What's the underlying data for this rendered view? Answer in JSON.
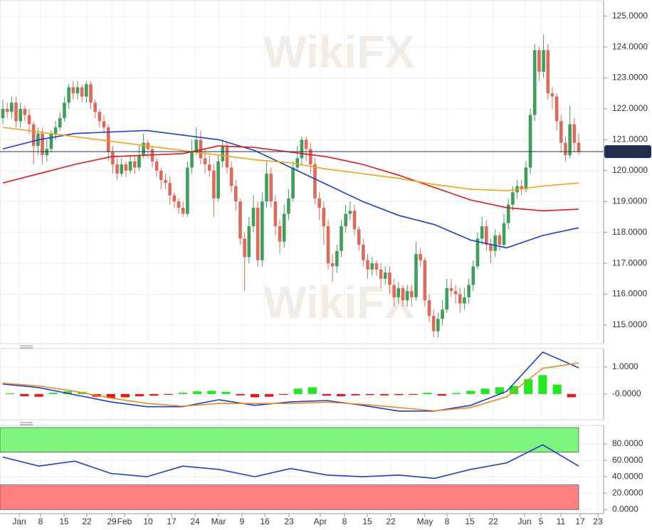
{
  "watermark": "WikiFX",
  "x_axis_labels": [
    "Jan",
    "8",
    "15",
    "22",
    "29",
    "Feb",
    "10",
    "17",
    "24",
    "Mar",
    "9",
    "16",
    "23",
    "Apr",
    "8",
    "15",
    "22",
    "May",
    "8",
    "15",
    "22",
    "Jun",
    "5",
    "11",
    "17",
    "23"
  ],
  "chart_data": [
    {
      "type": "candlestick",
      "ylim": [
        114.4,
        125.5
      ],
      "yticks": [
        {
          "value": 115,
          "label": "115.0000"
        },
        {
          "value": 116,
          "label": "116.0000"
        },
        {
          "value": 117,
          "label": "117.0000"
        },
        {
          "value": 118,
          "label": "118.0000"
        },
        {
          "value": 119,
          "label": "119.0000"
        },
        {
          "value": 120,
          "label": "120.0000"
        },
        {
          "value": 121,
          "label": "121.0000"
        },
        {
          "value": 122,
          "label": "122.0000"
        },
        {
          "value": 123,
          "label": "123.0000"
        },
        {
          "value": 124,
          "label": "124.0000"
        },
        {
          "value": 125,
          "label": "125.0000"
        }
      ],
      "grid": true,
      "up_color": "#3f9e5a",
      "down_color": "#dd6a5a",
      "open": [
        121.7,
        122.0,
        121.9,
        122.2,
        121.6,
        122.0,
        121.8,
        121.5,
        120.8,
        121.2,
        120.5,
        120.7,
        121.2,
        121.4,
        121.7,
        122.2,
        122.7,
        122.5,
        122.7,
        122.4,
        122.8,
        122.2,
        121.9,
        121.6,
        121.4,
        120.6,
        120.2,
        119.9,
        120.2,
        120.0,
        120.3,
        120.1,
        120.5,
        120.9,
        120.7,
        120.3,
        120.0,
        119.7,
        119.6,
        119.2,
        119.0,
        118.8,
        118.6,
        120.1,
        120.6,
        121.0,
        120.4,
        120.2,
        120.0,
        119.1,
        120.3,
        120.8,
        120.1,
        119.5,
        119.0,
        117.8,
        117.2,
        118.2,
        118.8,
        117.1,
        119.0,
        119.9,
        119.0,
        118.2,
        117.7,
        118.6,
        119.1,
        120.1,
        120.4,
        121.0,
        120.7,
        120.2,
        119.1,
        118.8,
        118.2,
        117.0,
        116.9,
        117.4,
        118.2,
        118.6,
        118.7,
        118.1,
        117.6,
        117.1,
        116.8,
        117.0,
        116.8,
        116.5,
        116.7,
        116.3,
        115.9,
        116.2,
        115.8,
        116.1,
        115.9,
        117.3,
        117.1,
        115.8,
        115.3,
        114.8,
        115.2,
        115.5,
        116.2,
        116.1,
        116.0,
        115.7,
        115.9,
        116.3,
        116.9,
        117.8,
        118.2,
        117.6,
        117.4,
        117.9,
        117.6,
        118.3,
        118.9,
        119.3,
        119.5,
        119.4,
        120.1,
        121.8,
        123.9,
        123.2,
        123.9,
        122.5,
        122.4,
        121.6,
        120.9,
        120.5,
        121.5,
        120.9
      ],
      "high": [
        122.3,
        122.2,
        122.4,
        122.4,
        122.2,
        122.1,
        122.0,
        121.6,
        121.4,
        121.4,
        121.0,
        121.3,
        121.6,
        121.9,
        122.4,
        122.8,
        122.9,
        122.9,
        122.8,
        122.9,
        122.9,
        122.3,
        122.0,
        121.8,
        121.5,
        120.8,
        120.4,
        120.4,
        120.3,
        120.5,
        120.5,
        120.8,
        121.2,
        121.0,
        120.8,
        120.4,
        120.1,
        119.9,
        119.8,
        119.3,
        119.1,
        119.0,
        120.3,
        121.0,
        121.4,
        121.3,
        120.7,
        120.5,
        120.2,
        120.5,
        121.0,
        120.9,
        120.3,
        119.7,
        119.1,
        118.0,
        118.5,
        119.2,
        119.0,
        119.3,
        120.3,
        120.1,
        119.2,
        118.4,
        118.9,
        119.4,
        120.3,
        120.8,
        121.1,
        121.1,
        120.9,
        120.4,
        119.3,
        119.0,
        118.4,
        117.3,
        117.6,
        118.4,
        118.9,
        119.0,
        118.9,
        118.2,
        117.8,
        117.3,
        117.2,
        117.1,
        117.0,
        116.9,
        116.9,
        116.5,
        116.4,
        116.3,
        116.3,
        116.3,
        117.7,
        117.5,
        117.2,
        116.0,
        115.5,
        115.4,
        115.8,
        116.5,
        116.5,
        116.3,
        116.2,
        116.2,
        116.5,
        117.1,
        118.0,
        118.5,
        118.4,
        117.8,
        118.1,
        118.0,
        118.6,
        119.1,
        119.5,
        119.7,
        119.7,
        120.3,
        122.0,
        124.1,
        124.0,
        124.4,
        124.1,
        122.7,
        122.5,
        121.8,
        121.1,
        122.1,
        121.7,
        121.2
      ],
      "low": [
        121.5,
        121.7,
        121.7,
        121.4,
        121.4,
        121.6,
        121.2,
        120.2,
        120.5,
        120.2,
        120.3,
        120.6,
        121.0,
        121.3,
        121.6,
        122.0,
        122.3,
        122.3,
        122.2,
        122.2,
        122.0,
        121.7,
        121.4,
        121.2,
        120.3,
        119.9,
        119.7,
        119.8,
        119.8,
        119.9,
        119.9,
        120.0,
        120.4,
        120.4,
        120.1,
        119.8,
        119.4,
        119.4,
        118.9,
        118.8,
        118.6,
        118.5,
        118.5,
        119.9,
        120.5,
        120.2,
        119.9,
        119.8,
        118.5,
        119.0,
        120.1,
        119.9,
        119.3,
        118.7,
        117.6,
        116.1,
        117.0,
        118.0,
        116.9,
        116.9,
        118.8,
        118.8,
        117.9,
        117.3,
        117.5,
        118.4,
        119.0,
        120.0,
        120.2,
        120.3,
        119.9,
        118.9,
        118.4,
        117.6,
        116.8,
        116.4,
        116.7,
        117.2,
        118.0,
        118.4,
        117.9,
        117.4,
        116.9,
        116.5,
        116.6,
        116.6,
        116.2,
        116.3,
        116.0,
        115.6,
        115.7,
        115.6,
        115.6,
        115.6,
        115.8,
        116.9,
        115.6,
        115.1,
        114.6,
        114.6,
        115.0,
        115.4,
        115.9,
        115.7,
        115.4,
        115.5,
        115.7,
        116.1,
        116.8,
        117.6,
        117.4,
        117.0,
        117.2,
        117.4,
        117.5,
        118.1,
        118.7,
        119.1,
        119.2,
        119.3,
        119.9,
        121.6,
        122.9,
        123.0,
        122.3,
        122.0,
        121.3,
        120.6,
        120.3,
        120.4,
        120.6,
        120.5
      ],
      "close": [
        122.0,
        121.9,
        122.2,
        121.6,
        122.0,
        121.8,
        121.5,
        120.8,
        121.2,
        120.5,
        120.7,
        121.2,
        121.4,
        121.7,
        122.2,
        122.7,
        122.5,
        122.7,
        122.4,
        122.8,
        122.2,
        121.9,
        121.6,
        121.4,
        120.6,
        120.2,
        119.9,
        120.2,
        120.0,
        120.3,
        120.1,
        120.5,
        120.9,
        120.7,
        120.3,
        120.0,
        119.7,
        119.6,
        119.2,
        119.0,
        118.8,
        118.6,
        120.1,
        120.6,
        121.0,
        120.4,
        120.2,
        120.0,
        119.1,
        120.3,
        120.8,
        120.1,
        119.5,
        119.0,
        117.8,
        117.2,
        118.2,
        118.8,
        117.1,
        119.0,
        119.9,
        119.0,
        118.2,
        117.7,
        118.6,
        119.1,
        120.1,
        120.4,
        121.0,
        120.7,
        120.2,
        119.1,
        118.8,
        118.2,
        117.0,
        116.9,
        117.4,
        118.2,
        118.6,
        118.7,
        118.1,
        117.6,
        117.1,
        116.8,
        117.0,
        116.8,
        116.5,
        116.7,
        116.3,
        115.9,
        116.2,
        115.8,
        116.1,
        115.9,
        117.3,
        117.1,
        115.8,
        115.3,
        114.8,
        115.2,
        115.5,
        116.2,
        116.1,
        116.0,
        115.7,
        115.9,
        116.3,
        116.9,
        117.8,
        118.2,
        117.6,
        117.4,
        117.9,
        117.6,
        118.3,
        118.9,
        119.3,
        119.5,
        119.4,
        120.1,
        121.8,
        123.9,
        123.2,
        123.9,
        122.5,
        122.4,
        121.6,
        120.9,
        120.5,
        121.5,
        120.9,
        120.615
      ],
      "series": [
        {
          "color": "#1a3fd1",
          "values": [
            120.7,
            121.0,
            121.2,
            121.25,
            121.3,
            121.15,
            121.0,
            120.65,
            120.1,
            119.55,
            119.0,
            118.55,
            118.25,
            117.75,
            117.5,
            117.9,
            118.15
          ]
        },
        {
          "color": "#e3191b",
          "values": [
            119.6,
            119.9,
            120.2,
            120.45,
            120.5,
            120.55,
            120.8,
            120.75,
            120.6,
            120.45,
            120.2,
            119.85,
            119.45,
            119.05,
            118.8,
            118.7,
            118.75
          ]
        },
        {
          "color": "#f5a10f",
          "values": [
            121.4,
            121.25,
            121.1,
            120.95,
            120.8,
            120.65,
            120.5,
            120.35,
            120.25,
            120.05,
            119.9,
            119.75,
            119.55,
            119.4,
            119.35,
            119.5,
            119.6
          ]
        }
      ],
      "last_price": {
        "value": 120.615,
        "label": "120.6150"
      }
    },
    {
      "type": "macd",
      "ylim": [
        -0.95,
        1.68
      ],
      "yticks": [
        {
          "value": 1,
          "label": "1.0000"
        },
        {
          "value": 0,
          "label": "-0.0000"
        }
      ],
      "grid": true,
      "up_color": "#22e822",
      "down_color": "#ee1414",
      "histogram": [
        0.03,
        -0.08,
        -0.1,
        0.05,
        0.1,
        0.08,
        -0.1,
        -0.15,
        -0.12,
        -0.08,
        -0.06,
        -0.03,
        0.05,
        0.1,
        0.12,
        0.08,
        -0.05,
        -0.12,
        -0.1,
        -0.03,
        0.2,
        0.25,
        -0.06,
        -0.08,
        -0.05,
        -0.04,
        -0.05,
        -0.04,
        -0.03,
        0.05,
        -0.06,
        0.04,
        0.12,
        0.2,
        0.25,
        0.3,
        0.55,
        0.7,
        0.35,
        -0.12
      ],
      "series": [
        {
          "color": "#1a3fd1",
          "values": [
            0.37,
            0.24,
            -0.03,
            -0.29,
            -0.47,
            -0.47,
            -0.21,
            -0.42,
            -0.29,
            -0.24,
            -0.42,
            -0.63,
            -0.63,
            -0.42,
            0.1,
            1.55,
            0.97
          ]
        },
        {
          "color": "#f08a1c",
          "values": [
            0.4,
            0.3,
            0.1,
            -0.15,
            -0.35,
            -0.45,
            -0.35,
            -0.35,
            -0.35,
            -0.3,
            -0.38,
            -0.5,
            -0.62,
            -0.5,
            -0.1,
            0.95,
            1.15
          ]
        }
      ]
    },
    {
      "type": "rsi",
      "ylim": [
        -5,
        102.6
      ],
      "yticks": [
        {
          "value": 0,
          "label": "0.0000"
        },
        {
          "value": 20,
          "label": "20.0000"
        },
        {
          "value": 40,
          "label": "40.0000"
        },
        {
          "value": 60,
          "label": "60.0000"
        },
        {
          "value": 80,
          "label": "80.0000"
        }
      ],
      "grid": true,
      "bands": [
        {
          "from": 70,
          "to": 100,
          "color": "#7df57d"
        },
        {
          "from": 0,
          "to": 30,
          "color": "#ff8080"
        }
      ],
      "series": [
        {
          "color": "#1a3fd1",
          "values": [
            64,
            53,
            59,
            44,
            40,
            53,
            49,
            40,
            50,
            42,
            40,
            42,
            38,
            49,
            57,
            79,
            53
          ]
        }
      ]
    }
  ]
}
